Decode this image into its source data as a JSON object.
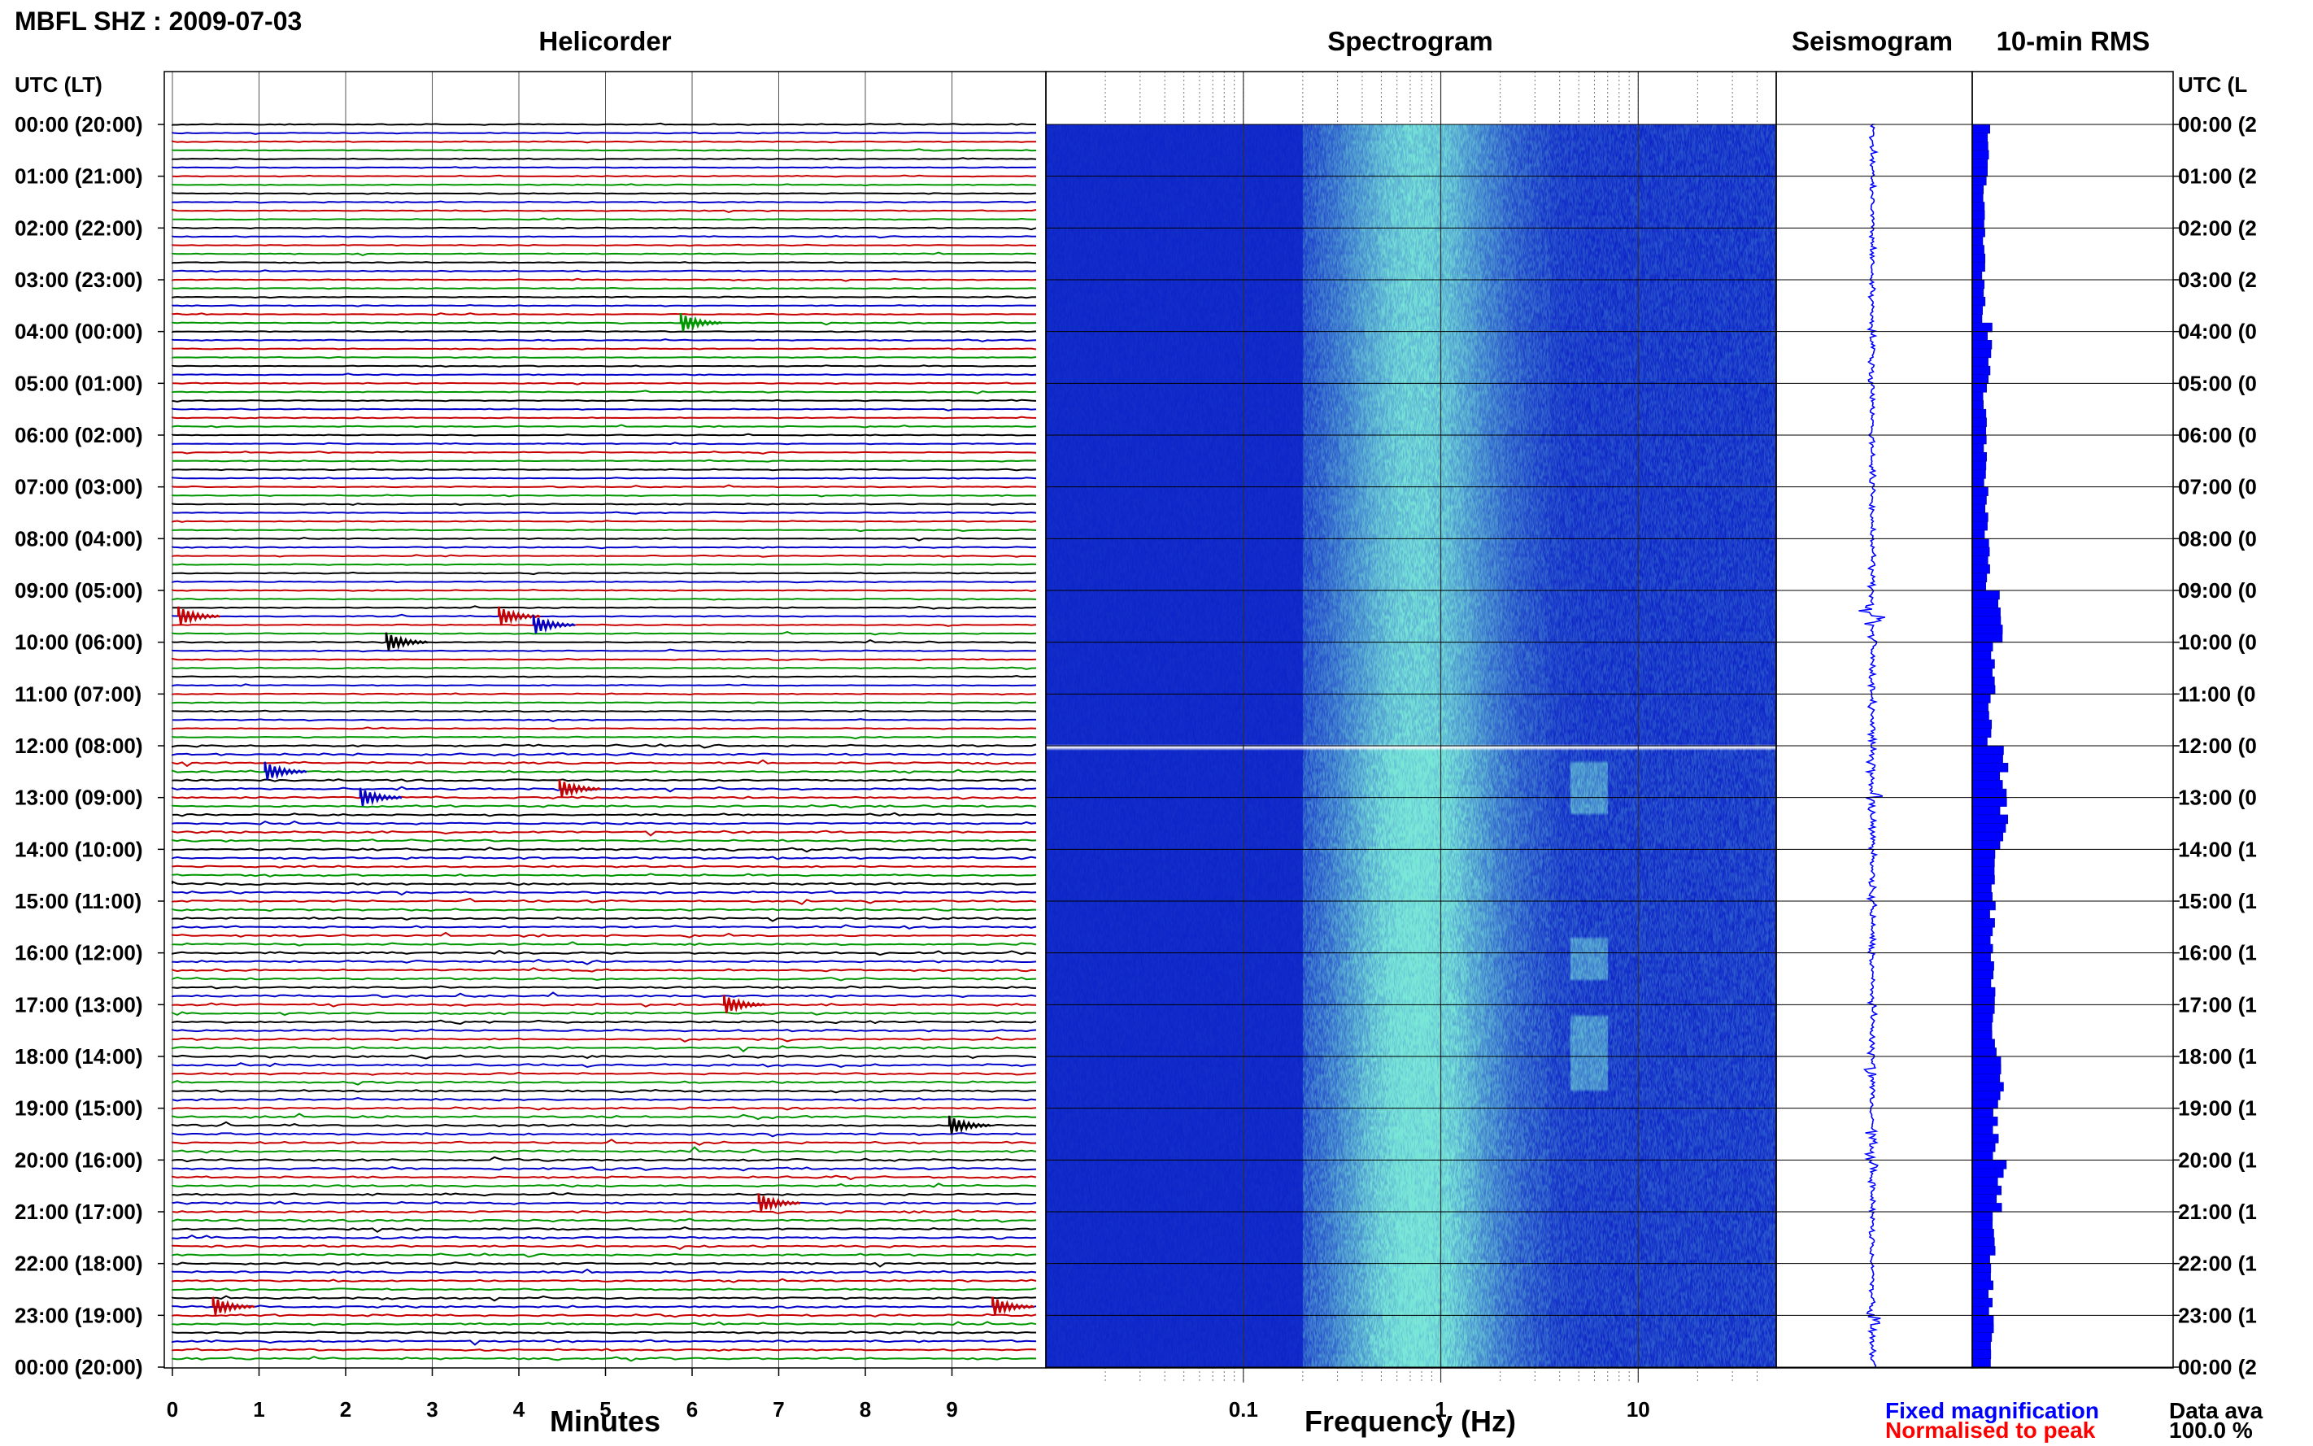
{
  "header": {
    "station_title": "MBFL SHZ : 2009-07-03",
    "utc_lt_label": "UTC (LT)",
    "utc_lt_label_right": "UTC (L"
  },
  "panels": {
    "helicorder": "Helicorder",
    "spectrogram": "Spectrogram",
    "seismogram": "Seismogram",
    "rms": "10-min RMS"
  },
  "legend": {
    "fixed": "Fixed magnification",
    "normalised": "Normalised to peak",
    "fixed_color": "#0000ff",
    "normalised_color": "#ff0000"
  },
  "availability": {
    "label": "Data ava",
    "value": "100.0 %"
  },
  "colors": {
    "trace_cycle": [
      "#000000",
      "#0000c8",
      "#c80000",
      "#009600"
    ],
    "spectrogram_low": "#0a1ec8",
    "spectrogram_high": "#7ae8d8",
    "seismogram": "#0000ff",
    "rms": "#0000ff"
  },
  "chart_data": [
    {
      "type": "helicorder",
      "title": "Helicorder",
      "xlabel": "Minutes",
      "xlim": [
        0,
        10
      ],
      "x_ticks": [
        "0",
        "1",
        "2",
        "3",
        "4",
        "5",
        "6",
        "7",
        "8",
        "9"
      ],
      "y_ticks_left": [
        "00:00 (20:00)",
        "01:00 (21:00)",
        "02:00 (22:00)",
        "03:00 (23:00)",
        "04:00 (00:00)",
        "05:00 (01:00)",
        "06:00 (02:00)",
        "07:00 (03:00)",
        "08:00 (04:00)",
        "09:00 (05:00)",
        "10:00 (06:00)",
        "11:00 (07:00)",
        "12:00 (08:00)",
        "13:00 (09:00)",
        "14:00 (10:00)",
        "15:00 (11:00)",
        "16:00 (12:00)",
        "17:00 (13:00)",
        "18:00 (14:00)",
        "19:00 (15:00)",
        "20:00 (16:00)",
        "21:00 (17:00)",
        "22:00 (18:00)",
        "23:00 (19:00)",
        "00:00 (20:00)"
      ],
      "traces_per_hour": 6,
      "events": [
        {
          "hour": 3.8333,
          "minute": 6.0,
          "color": "#009600"
        },
        {
          "hour": 9.5,
          "minute": 0.2,
          "color": "#c80000"
        },
        {
          "hour": 9.5,
          "minute": 3.9,
          "color": "#c80000"
        },
        {
          "hour": 9.6667,
          "minute": 4.3,
          "color": "#0000c8"
        },
        {
          "hour": 10.0,
          "minute": 2.6,
          "color": "#000000"
        },
        {
          "hour": 12.5,
          "minute": 1.2,
          "color": "#0000c8"
        },
        {
          "hour": 12.8333,
          "minute": 4.6,
          "color": "#c80000"
        },
        {
          "hour": 13.0,
          "minute": 2.3,
          "color": "#0000c8"
        },
        {
          "hour": 17.0,
          "minute": 6.5,
          "color": "#c80000"
        },
        {
          "hour": 19.3333,
          "minute": 9.1,
          "color": "#000000"
        },
        {
          "hour": 20.8333,
          "minute": 6.9,
          "color": "#c80000"
        },
        {
          "hour": 22.8333,
          "minute": 0.6,
          "color": "#c80000"
        },
        {
          "hour": 22.8333,
          "minute": 9.6,
          "color": "#c80000"
        }
      ]
    },
    {
      "type": "heatmap",
      "title": "Spectrogram",
      "xlabel": "Frequency (Hz)",
      "xscale": "log",
      "xlim": [
        0.01,
        50
      ],
      "x_tick_labels": [
        "0.1",
        "1",
        "10"
      ],
      "x_major_ticks": [
        0.1,
        1,
        10
      ],
      "y_range_hours": [
        0,
        24
      ],
      "data_gap_hour": 12.0
    },
    {
      "type": "line",
      "title": "Seismogram",
      "y_range_hours": [
        0,
        24
      ],
      "bursts": [
        {
          "hour": 9.5,
          "amp": 0.85
        },
        {
          "hour": 10.0,
          "amp": 0.3
        },
        {
          "hour": 12.5,
          "amp": 0.4
        },
        {
          "hour": 13.0,
          "amp": 0.55
        },
        {
          "hour": 15.0,
          "amp": 0.25
        },
        {
          "hour": 18.3,
          "amp": 0.35
        },
        {
          "hour": 19.5,
          "amp": 0.3
        },
        {
          "hour": 20.0,
          "amp": 0.45
        },
        {
          "hour": 23.0,
          "amp": 0.5
        }
      ]
    },
    {
      "type": "bar",
      "title": "10-min RMS",
      "orientation": "horizontal",
      "bins": 144,
      "y_range_hours": [
        0,
        24
      ],
      "hourly_profile": [
        0.28,
        0.22,
        0.2,
        0.2,
        0.3,
        0.22,
        0.22,
        0.25,
        0.28,
        0.5,
        0.36,
        0.3,
        0.55,
        0.55,
        0.36,
        0.36,
        0.36,
        0.38,
        0.5,
        0.4,
        0.48,
        0.36,
        0.32,
        0.36
      ],
      "peaks": [
        {
          "hour": 3.8333,
          "value": 0.35
        },
        {
          "hour": 9.5,
          "value": 0.5
        },
        {
          "hour": 12.0,
          "value": 0.55
        },
        {
          "hour": 12.8333,
          "value": 0.6
        },
        {
          "hour": 18.5,
          "value": 0.55
        },
        {
          "hour": 20.0,
          "value": 0.6
        },
        {
          "hour": 23.0,
          "value": 0.36
        }
      ]
    }
  ],
  "y_ticks_right": [
    "00:00 (2",
    "01:00 (2",
    "02:00 (2",
    "03:00 (2",
    "04:00 (0",
    "05:00 (0",
    "06:00 (0",
    "07:00 (0",
    "08:00 (0",
    "09:00 (0",
    "10:00 (0",
    "11:00 (0",
    "12:00 (0",
    "13:00 (0",
    "14:00 (1",
    "15:00 (1",
    "16:00 (1",
    "17:00 (1",
    "18:00 (1",
    "19:00 (1",
    "20:00 (1",
    "21:00 (1",
    "22:00 (1",
    "23:00 (1",
    "00:00 (2"
  ]
}
